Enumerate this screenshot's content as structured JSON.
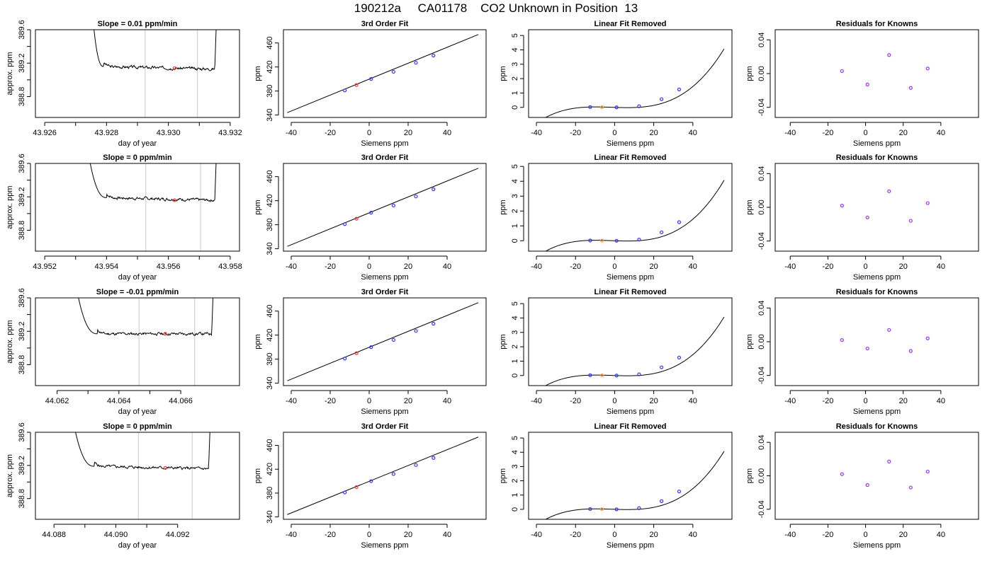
{
  "page": {
    "title": "190212a     CA01178    CO2 Unknown in Position  13"
  },
  "colors": {
    "axis": "#000000",
    "trace": "#000000",
    "vline": "#c8c8c8",
    "known": "#3333ff",
    "unknown_red": "#ff3333",
    "unknown_orange": "#ff9933",
    "residual": "#9933ff"
  },
  "chart_data": [
    {
      "type": "line",
      "panel": "trace",
      "title": "Slope =  0.01  ppm/min",
      "xlabel": "day of year",
      "ylabel": "approx. ppm",
      "xlim": [
        43.9257,
        43.9323
      ],
      "ylim": [
        388.55,
        389.6
      ],
      "xticks": [
        43.926,
        43.928,
        43.93,
        43.932
      ],
      "xtick_labels": [
        "43.926",
        "43.928",
        "43.930",
        "43.932"
      ],
      "yticks": [
        388.8,
        389.2,
        389.6
      ],
      "ytick_labels": [
        "388.8",
        "389.2",
        "389.6"
      ],
      "trace": {
        "start": 43.9275,
        "end": 43.9316,
        "plateau_start": 43.9279,
        "plateau_end": 43.9315,
        "level_start": 389.16,
        "level_end": 389.13,
        "wiggle": 0.012,
        "seed": 3
      },
      "window": [
        43.92925,
        43.93094
      ],
      "marker": {
        "x": 43.9302,
        "y": 389.14
      }
    },
    {
      "type": "line",
      "panel": "trace",
      "title": "Slope =  0  ppm/min",
      "xlabel": "day of year",
      "ylabel": "approx. ppm",
      "xlim": [
        43.9517,
        43.9583
      ],
      "ylim": [
        388.55,
        389.6
      ],
      "xticks": [
        43.952,
        43.954,
        43.956,
        43.958
      ],
      "xtick_labels": [
        "43.952",
        "43.954",
        "43.956",
        "43.958"
      ],
      "yticks": [
        388.8,
        389.2,
        389.6
      ],
      "ytick_labels": [
        "388.8",
        "389.2",
        "389.6"
      ],
      "trace": {
        "start": 43.9533,
        "end": 43.9576,
        "plateau_start": 43.954,
        "plateau_end": 43.9575,
        "level_start": 389.19,
        "level_end": 389.16,
        "wiggle": 0.012,
        "seed": 7
      },
      "window": [
        43.95527,
        43.95704
      ],
      "marker": {
        "x": 43.9562,
        "y": 389.16
      }
    },
    {
      "type": "line",
      "panel": "trace",
      "title": "Slope =  -0.01  ppm/min",
      "xlabel": "day of year",
      "ylabel": "approx. ppm",
      "xlim": [
        44.0613,
        44.0679
      ],
      "ylim": [
        388.55,
        389.6
      ],
      "xticks": [
        44.062,
        44.064,
        44.066
      ],
      "xtick_labels": [
        "44.062",
        "44.064",
        "44.066"
      ],
      "yticks": [
        388.8,
        389.2,
        389.6
      ],
      "ytick_labels": [
        "388.8",
        "389.2",
        "389.6"
      ],
      "trace": {
        "start": 44.0625,
        "end": 44.0671,
        "plateau_start": 44.0633,
        "plateau_end": 44.067,
        "level_start": 389.17,
        "level_end": 389.17,
        "wiggle": 0.012,
        "seed": 11
      },
      "window": [
        44.06465,
        44.06645
      ],
      "marker": {
        "x": 44.0655,
        "y": 389.17
      }
    },
    {
      "type": "line",
      "panel": "trace",
      "title": "Slope =  0  ppm/min",
      "xlabel": "day of year",
      "ylabel": "approx. ppm",
      "xlim": [
        44.0874,
        44.094
      ],
      "ylim": [
        388.55,
        389.6
      ],
      "xticks": [
        44.088,
        44.09,
        44.092
      ],
      "xtick_labels": [
        "44.088",
        "44.090",
        "44.092"
      ],
      "yticks": [
        388.8,
        389.2,
        389.6
      ],
      "ytick_labels": [
        "388.8",
        "389.2",
        "389.6"
      ],
      "trace": {
        "start": 44.0885,
        "end": 44.0931,
        "plateau_start": 44.0893,
        "plateau_end": 44.093,
        "level_start": 389.19,
        "level_end": 389.16,
        "wiggle": 0.012,
        "seed": 5
      },
      "window": [
        44.09073,
        44.09247
      ],
      "marker": {
        "x": 44.0916,
        "y": 389.17
      }
    },
    {
      "type": "line",
      "panel": "fit",
      "title": "3rd Order Fit",
      "xlabel": "Siemens ppm",
      "ylabel": "ppm",
      "xlim": [
        -44,
        60
      ],
      "ylim": [
        336,
        482
      ],
      "xticks": [
        -40,
        -20,
        0,
        20,
        40
      ],
      "xtick_labels": [
        "-40",
        "-20",
        "0",
        "20",
        "40"
      ],
      "yticks": [
        340,
        380,
        420,
        460
      ],
      "ytick_labels": [
        "340",
        "380",
        "420",
        "460"
      ],
      "line": {
        "x": [
          -42,
          56
        ],
        "y": [
          344,
          474
        ]
      },
      "points": [
        {
          "x": -12.5,
          "y": 381,
          "kind": "known"
        },
        {
          "x": 1,
          "y": 400,
          "kind": "known"
        },
        {
          "x": 12.5,
          "y": 412,
          "kind": "known"
        },
        {
          "x": 24,
          "y": 427,
          "kind": "known"
        },
        {
          "x": 33,
          "y": 439,
          "kind": "known"
        },
        {
          "x": -6.5,
          "y": 390,
          "kind": "unknown"
        }
      ]
    },
    {
      "type": "line",
      "panel": "fit",
      "title": "3rd Order Fit",
      "xlabel": "Siemens ppm",
      "ylabel": "ppm",
      "xlim": [
        -44,
        60
      ],
      "ylim": [
        336,
        482
      ],
      "xticks": [
        -40,
        -20,
        0,
        20,
        40
      ],
      "xtick_labels": [
        "-40",
        "-20",
        "0",
        "20",
        "40"
      ],
      "yticks": [
        340,
        380,
        420,
        460
      ],
      "ytick_labels": [
        "340",
        "380",
        "420",
        "460"
      ],
      "line": {
        "x": [
          -42,
          56
        ],
        "y": [
          344,
          474
        ]
      },
      "points": [
        {
          "x": -12.5,
          "y": 381,
          "kind": "known"
        },
        {
          "x": 1,
          "y": 400,
          "kind": "known"
        },
        {
          "x": 12.5,
          "y": 412,
          "kind": "known"
        },
        {
          "x": 24,
          "y": 427,
          "kind": "known"
        },
        {
          "x": 33,
          "y": 439,
          "kind": "known"
        },
        {
          "x": -6.5,
          "y": 390,
          "kind": "unknown"
        }
      ]
    },
    {
      "type": "line",
      "panel": "fit",
      "title": "3rd Order Fit",
      "xlabel": "Siemens ppm",
      "ylabel": "ppm",
      "xlim": [
        -44,
        60
      ],
      "ylim": [
        336,
        482
      ],
      "xticks": [
        -40,
        -20,
        0,
        20,
        40
      ],
      "xtick_labels": [
        "-40",
        "-20",
        "0",
        "20",
        "40"
      ],
      "yticks": [
        340,
        380,
        420,
        460
      ],
      "ytick_labels": [
        "340",
        "380",
        "420",
        "460"
      ],
      "line": {
        "x": [
          -42,
          56
        ],
        "y": [
          344,
          474
        ]
      },
      "points": [
        {
          "x": -12.5,
          "y": 381,
          "kind": "known"
        },
        {
          "x": 1,
          "y": 400,
          "kind": "known"
        },
        {
          "x": 12.5,
          "y": 412,
          "kind": "known"
        },
        {
          "x": 24,
          "y": 427,
          "kind": "known"
        },
        {
          "x": 33,
          "y": 439,
          "kind": "known"
        },
        {
          "x": -6.5,
          "y": 390,
          "kind": "unknown"
        }
      ]
    },
    {
      "type": "line",
      "panel": "fit",
      "title": "3rd Order Fit",
      "xlabel": "Siemens ppm",
      "ylabel": "ppm",
      "xlim": [
        -44,
        60
      ],
      "ylim": [
        336,
        482
      ],
      "xticks": [
        -40,
        -20,
        0,
        20,
        40
      ],
      "xtick_labels": [
        "-40",
        "-20",
        "0",
        "20",
        "40"
      ],
      "yticks": [
        340,
        380,
        420,
        460
      ],
      "ytick_labels": [
        "340",
        "380",
        "420",
        "460"
      ],
      "line": {
        "x": [
          -42,
          56
        ],
        "y": [
          344,
          474
        ]
      },
      "points": [
        {
          "x": -12.5,
          "y": 381,
          "kind": "known"
        },
        {
          "x": 1,
          "y": 400,
          "kind": "known"
        },
        {
          "x": 12.5,
          "y": 412,
          "kind": "known"
        },
        {
          "x": 24,
          "y": 427,
          "kind": "known"
        },
        {
          "x": 33,
          "y": 439,
          "kind": "known"
        },
        {
          "x": -6.5,
          "y": 390,
          "kind": "unknown"
        }
      ]
    },
    {
      "type": "line",
      "panel": "linrem",
      "title": "Linear Fit Removed",
      "xlabel": "Siemens ppm",
      "ylabel": "ppm",
      "xlim": [
        -44,
        60
      ],
      "ylim": [
        -0.7,
        5.4
      ],
      "xticks": [
        -40,
        -20,
        0,
        20,
        40
      ],
      "xtick_labels": [
        "-40",
        "-20",
        "0",
        "20",
        "40"
      ],
      "yticks": [
        0,
        1,
        2,
        3,
        4,
        5
      ],
      "ytick_labels": [
        "0",
        "1",
        "2",
        "3",
        "4",
        "5"
      ],
      "curve": {
        "x_from": -42,
        "x_to": 56,
        "poly": [
          0.0,
          -0.0043,
          0.00011,
          2.26e-05
        ]
      },
      "points": [
        {
          "x": -12.5,
          "y": 0.02,
          "kind": "known"
        },
        {
          "x": 1,
          "y": 0.0,
          "kind": "known"
        },
        {
          "x": 12.5,
          "y": 0.08,
          "kind": "known"
        },
        {
          "x": 24,
          "y": 0.57,
          "kind": "known"
        },
        {
          "x": 33,
          "y": 1.25,
          "kind": "known"
        },
        {
          "x": -6.5,
          "y": 0.01,
          "kind": "unknown"
        }
      ]
    },
    {
      "type": "line",
      "panel": "linrem",
      "title": "Linear Fit Removed",
      "xlabel": "Siemens ppm",
      "ylabel": "ppm",
      "xlim": [
        -44,
        60
      ],
      "ylim": [
        -0.7,
        5.2
      ],
      "xticks": [
        -40,
        -20,
        0,
        20,
        40
      ],
      "xtick_labels": [
        "-40",
        "-20",
        "0",
        "20",
        "40"
      ],
      "yticks": [
        0,
        1,
        2,
        3,
        4,
        5
      ],
      "ytick_labels": [
        "0",
        "1",
        "2",
        "3",
        "4",
        "5"
      ],
      "curve": {
        "x_from": -42,
        "x_to": 56,
        "poly": [
          0.0,
          -0.0043,
          0.00011,
          2.26e-05
        ]
      },
      "points": [
        {
          "x": -12.5,
          "y": 0.02,
          "kind": "known"
        },
        {
          "x": 1,
          "y": 0.0,
          "kind": "known"
        },
        {
          "x": 12.5,
          "y": 0.08,
          "kind": "known"
        },
        {
          "x": 24,
          "y": 0.57,
          "kind": "known"
        },
        {
          "x": 33,
          "y": 1.25,
          "kind": "known"
        },
        {
          "x": -6.5,
          "y": 0.01,
          "kind": "unknown"
        }
      ]
    },
    {
      "type": "line",
      "panel": "linrem",
      "title": "Linear Fit Removed",
      "xlabel": "Siemens ppm",
      "ylabel": "ppm",
      "xlim": [
        -44,
        60
      ],
      "ylim": [
        -0.7,
        5.4
      ],
      "xticks": [
        -40,
        -20,
        0,
        20,
        40
      ],
      "xtick_labels": [
        "-40",
        "-20",
        "0",
        "20",
        "40"
      ],
      "yticks": [
        0,
        1,
        2,
        3,
        4,
        5
      ],
      "ytick_labels": [
        "0",
        "1",
        "2",
        "3",
        "4",
        "5"
      ],
      "curve": {
        "x_from": -42,
        "x_to": 56,
        "poly": [
          0.0,
          -0.0043,
          0.00011,
          2.26e-05
        ]
      },
      "points": [
        {
          "x": -12.5,
          "y": 0.02,
          "kind": "known"
        },
        {
          "x": 1,
          "y": 0.0,
          "kind": "known"
        },
        {
          "x": 12.5,
          "y": 0.08,
          "kind": "known"
        },
        {
          "x": 24,
          "y": 0.57,
          "kind": "known"
        },
        {
          "x": 33,
          "y": 1.25,
          "kind": "known"
        },
        {
          "x": -6.5,
          "y": 0.01,
          "kind": "unknown"
        }
      ]
    },
    {
      "type": "line",
      "panel": "linrem",
      "title": "Linear Fit Removed",
      "xlabel": "Siemens ppm",
      "ylabel": "ppm",
      "xlim": [
        -44,
        60
      ],
      "ylim": [
        -0.7,
        5.4
      ],
      "xticks": [
        -40,
        -20,
        0,
        20,
        40
      ],
      "xtick_labels": [
        "-40",
        "-20",
        "0",
        "20",
        "40"
      ],
      "yticks": [
        0,
        1,
        2,
        3,
        4,
        5
      ],
      "ytick_labels": [
        "0",
        "1",
        "2",
        "3",
        "4",
        "5"
      ],
      "curve": {
        "x_from": -42,
        "x_to": 56,
        "poly": [
          0.0,
          -0.0043,
          0.00011,
          2.26e-05
        ]
      },
      "points": [
        {
          "x": -12.5,
          "y": 0.02,
          "kind": "known"
        },
        {
          "x": 1,
          "y": 0.0,
          "kind": "known"
        },
        {
          "x": 12.5,
          "y": 0.08,
          "kind": "known"
        },
        {
          "x": 24,
          "y": 0.57,
          "kind": "known"
        },
        {
          "x": 33,
          "y": 1.25,
          "kind": "known"
        },
        {
          "x": -6.5,
          "y": 0.01,
          "kind": "unknown"
        }
      ]
    },
    {
      "type": "scatter",
      "panel": "resid",
      "title": "Residuals for Knowns",
      "xlabel": "Siemens ppm",
      "ylabel": "ppm",
      "xlim": [
        -48,
        60
      ],
      "ylim": [
        -0.052,
        0.052
      ],
      "xticks": [
        -40,
        -20,
        0,
        20,
        40
      ],
      "xtick_labels": [
        "-40",
        "-20",
        "0",
        "20",
        "40"
      ],
      "yticks": [
        -0.04,
        0.0,
        0.04
      ],
      "ytick_labels": [
        "-0.04",
        "0.00",
        "0.04"
      ],
      "points": [
        {
          "x": -12.5,
          "y": 0.003
        },
        {
          "x": 1,
          "y": -0.013
        },
        {
          "x": 12.5,
          "y": 0.022
        },
        {
          "x": 24,
          "y": -0.017
        },
        {
          "x": 33,
          "y": 0.006
        }
      ]
    },
    {
      "type": "scatter",
      "panel": "resid",
      "title": "Residuals for Knowns",
      "xlabel": "Siemens ppm",
      "ylabel": "ppm",
      "xlim": [
        -48,
        60
      ],
      "ylim": [
        -0.052,
        0.052
      ],
      "xticks": [
        -40,
        -20,
        0,
        20,
        40
      ],
      "xtick_labels": [
        "-40",
        "-20",
        "0",
        "20",
        "40"
      ],
      "yticks": [
        -0.04,
        0.0,
        0.04
      ],
      "ytick_labels": [
        "-0.04",
        "0.00",
        "0.04"
      ],
      "points": [
        {
          "x": -12.5,
          "y": 0.002
        },
        {
          "x": 1,
          "y": -0.012
        },
        {
          "x": 12.5,
          "y": 0.019
        },
        {
          "x": 24,
          "y": -0.016
        },
        {
          "x": 33,
          "y": 0.005
        }
      ]
    },
    {
      "type": "scatter",
      "panel": "resid",
      "title": "Residuals for Knowns",
      "xlabel": "Siemens ppm",
      "ylabel": "ppm",
      "xlim": [
        -48,
        60
      ],
      "ylim": [
        -0.052,
        0.052
      ],
      "xticks": [
        -40,
        -20,
        0,
        20,
        40
      ],
      "xtick_labels": [
        "-40",
        "-20",
        "0",
        "20",
        "40"
      ],
      "yticks": [
        -0.04,
        0.0,
        0.04
      ],
      "ytick_labels": [
        "-0.04",
        "0.00",
        "0.04"
      ],
      "points": [
        {
          "x": -12.5,
          "y": 0.002
        },
        {
          "x": 1,
          "y": -0.008
        },
        {
          "x": 12.5,
          "y": 0.014
        },
        {
          "x": 24,
          "y": -0.011
        },
        {
          "x": 33,
          "y": 0.004
        }
      ]
    },
    {
      "type": "scatter",
      "panel": "resid",
      "title": "Residuals for Knowns",
      "xlabel": "Siemens ppm",
      "ylabel": "ppm",
      "xlim": [
        -48,
        60
      ],
      "ylim": [
        -0.052,
        0.052
      ],
      "xticks": [
        -40,
        -20,
        0,
        20,
        40
      ],
      "xtick_labels": [
        "-40",
        "-20",
        "0",
        "20",
        "40"
      ],
      "yticks": [
        -0.04,
        0.0,
        0.04
      ],
      "ytick_labels": [
        "-0.04",
        "0.00",
        "0.04"
      ],
      "points": [
        {
          "x": -12.5,
          "y": 0.002
        },
        {
          "x": 1,
          "y": -0.011
        },
        {
          "x": 12.5,
          "y": 0.017
        },
        {
          "x": 24,
          "y": -0.014
        },
        {
          "x": 33,
          "y": 0.005
        }
      ]
    }
  ]
}
